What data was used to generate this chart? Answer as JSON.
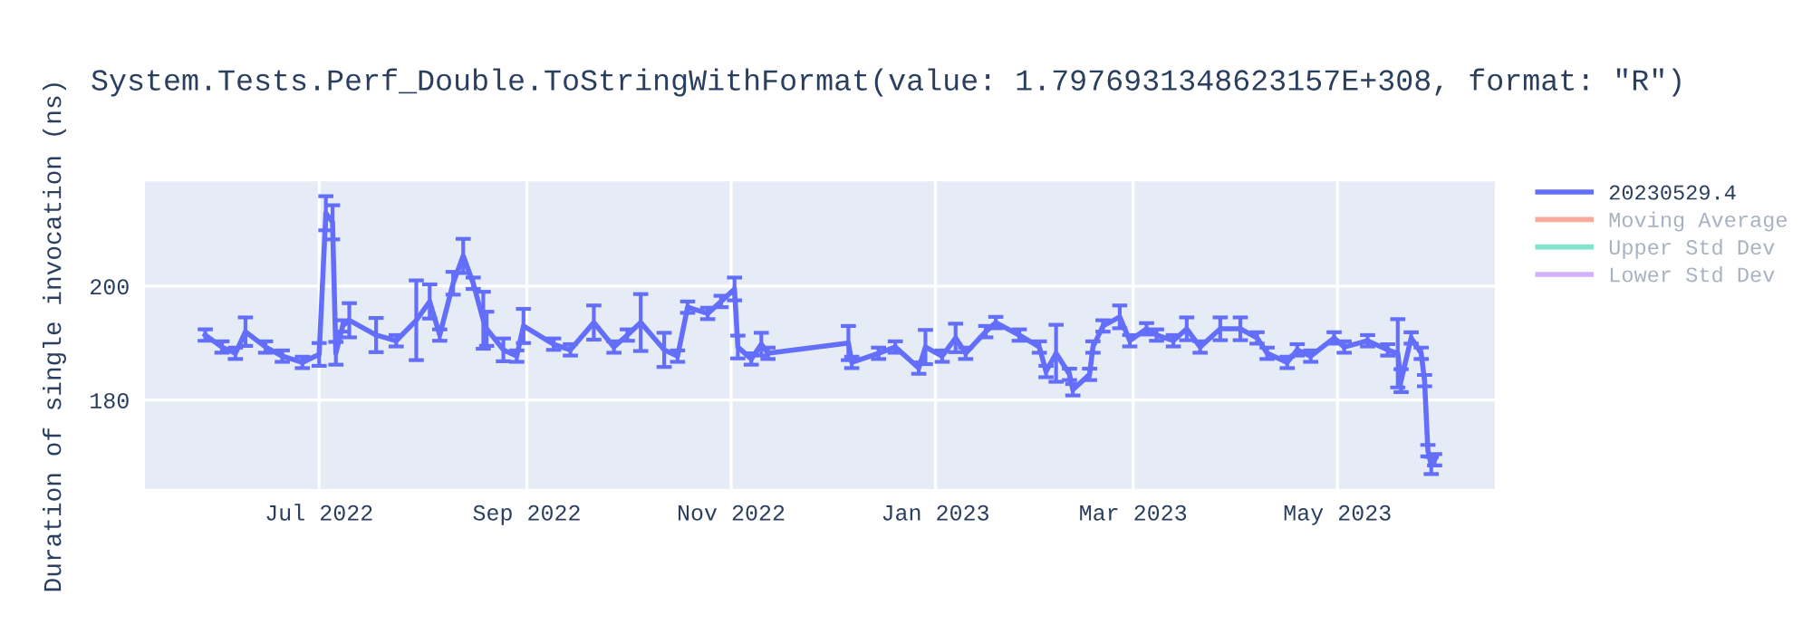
{
  "chart_data": {
    "type": "line",
    "title": "System.Tests.Perf_Double.ToStringWithFormat(value: 1.7976931348623157E+308, format: \"R\")",
    "ylabel": "Duration of single invocation (ns)",
    "x": [
      "2022-05-28",
      "2022-06-02",
      "2022-06-06",
      "2022-06-09",
      "2022-06-15",
      "2022-06-20",
      "2022-06-26",
      "2022-07-01",
      "2022-07-03",
      "2022-07-05",
      "2022-07-06",
      "2022-07-08",
      "2022-07-10",
      "2022-07-18",
      "2022-07-24",
      "2022-07-30",
      "2022-08-03",
      "2022-08-06",
      "2022-08-10",
      "2022-08-13",
      "2022-08-16",
      "2022-08-19",
      "2022-08-20",
      "2022-08-25",
      "2022-08-29",
      "2022-08-31",
      "2022-09-09",
      "2022-09-14",
      "2022-09-21",
      "2022-09-27",
      "2022-10-01",
      "2022-10-05",
      "2022-10-12",
      "2022-10-16",
      "2022-10-19",
      "2022-10-25",
      "2022-10-29",
      "2022-11-02",
      "2022-11-03",
      "2022-11-07",
      "2022-11-10",
      "2022-11-12",
      "2022-12-06",
      "2022-12-07",
      "2022-12-15",
      "2022-12-20",
      "2022-12-27",
      "2022-12-29",
      "2023-01-03",
      "2023-01-07",
      "2023-01-10",
      "2023-01-16",
      "2023-01-19",
      "2023-01-26",
      "2023-02-01",
      "2023-02-03",
      "2023-02-06",
      "2023-02-10",
      "2023-02-11",
      "2023-02-16",
      "2023-02-17",
      "2023-02-20",
      "2023-02-25",
      "2023-02-28",
      "2023-03-05",
      "2023-03-08",
      "2023-03-13",
      "2023-03-17",
      "2023-03-21",
      "2023-03-27",
      "2023-04-02",
      "2023-04-07",
      "2023-04-10",
      "2023-04-16",
      "2023-04-19",
      "2023-04-23",
      "2023-04-30",
      "2023-05-03",
      "2023-05-10",
      "2023-05-16",
      "2023-05-19",
      "2023-05-20",
      "2023-05-23",
      "2023-05-26",
      "2023-05-27",
      "2023-05-28",
      "2023-05-29",
      "2023-05-30"
    ],
    "series": [
      {
        "name": "20230529.4",
        "color": "#636efa",
        "values": [
          191.4,
          189.3,
          188.2,
          192,
          189.3,
          187.7,
          186.6,
          188,
          212.8,
          211.2,
          188.2,
          193,
          194,
          191.4,
          190.4,
          194,
          197.3,
          191.4,
          200.5,
          205.3,
          200.5,
          194,
          192.5,
          188.8,
          187.7,
          193,
          189.8,
          188.8,
          193.6,
          189.3,
          191.4,
          193.6,
          188.8,
          187.7,
          196.3,
          195.2,
          197.3,
          199.5,
          189.3,
          187.2,
          189.8,
          188.2,
          190,
          186.6,
          188.2,
          189.3,
          185.6,
          189.3,
          187.7,
          190.9,
          188.2,
          192,
          193.6,
          191.4,
          189.3,
          185,
          188.2,
          184.5,
          181.8,
          184.5,
          189.3,
          193,
          194.6,
          190.4,
          192.5,
          191.4,
          190.4,
          192.5,
          189.3,
          192.5,
          192.5,
          190.9,
          188.2,
          186.6,
          188.8,
          187.7,
          190.9,
          189.3,
          190.4,
          188.8,
          188.2,
          183.4,
          190.9,
          188.2,
          183.4,
          171.1,
          168.5,
          169.5
        ],
        "errors": [
          1,
          1,
          1,
          2.5,
          1,
          1,
          1,
          2,
          3,
          3,
          2,
          1,
          3,
          3,
          1,
          7,
          3,
          1,
          2,
          3,
          1,
          5,
          3,
          2,
          1,
          3,
          1,
          1,
          3,
          1,
          1,
          5,
          3,
          1,
          1,
          1,
          1,
          2,
          2,
          1,
          2,
          1,
          3,
          1,
          1,
          1,
          1,
          3,
          1,
          2.5,
          1,
          1,
          1,
          1,
          1,
          1,
          5,
          1,
          1,
          1,
          1,
          1,
          2,
          1,
          1,
          1,
          1,
          2,
          1,
          2,
          2,
          1,
          1,
          1,
          1,
          1,
          1,
          1,
          1,
          1,
          6,
          2,
          1,
          1,
          1,
          1,
          1.5,
          1
        ]
      },
      {
        "name": "Moving Average",
        "color": "#f7aa9d",
        "values": [
          null,
          null,
          null,
          null,
          null,
          null,
          null,
          null,
          null,
          null,
          null,
          null,
          null,
          null,
          null,
          null,
          null,
          null,
          null,
          null,
          null,
          null,
          null,
          null,
          null,
          null,
          null,
          null,
          null,
          null,
          null,
          null,
          null,
          null,
          null,
          null,
          null,
          null,
          null,
          null,
          null,
          null,
          null,
          null,
          null,
          null,
          null,
          null,
          null,
          null,
          null,
          null,
          null,
          null,
          null,
          null,
          null,
          null,
          null,
          null,
          null,
          null,
          null,
          null,
          null,
          null,
          null,
          null,
          null,
          null,
          null,
          null,
          null,
          null,
          null,
          null,
          null,
          null,
          null,
          null,
          null,
          null,
          null,
          null,
          null,
          null,
          null,
          null
        ]
      },
      {
        "name": "Upper Std Dev",
        "color": "#80e5cb",
        "values": [
          null,
          null,
          null,
          null,
          null,
          null,
          null,
          null,
          null,
          null,
          null,
          null,
          null,
          null,
          null,
          null,
          null,
          null,
          null,
          null,
          null,
          null,
          null,
          null,
          null,
          null,
          null,
          null,
          null,
          null,
          null,
          null,
          null,
          null,
          null,
          null,
          null,
          null,
          null,
          null,
          null,
          null,
          null,
          null,
          null,
          null,
          null,
          null,
          null,
          null,
          null,
          null,
          null,
          null,
          null,
          null,
          null,
          null,
          null,
          null,
          null,
          null,
          null,
          null,
          null,
          null,
          null,
          null,
          null,
          null,
          null,
          null,
          null,
          null,
          null,
          null,
          null,
          null,
          null,
          null,
          null,
          null,
          null,
          null,
          null,
          null,
          null,
          null
        ]
      },
      {
        "name": "Lower Std Dev",
        "color": "#d5b1fc",
        "values": [
          null,
          null,
          null,
          null,
          null,
          null,
          null,
          null,
          null,
          null,
          null,
          null,
          null,
          null,
          null,
          null,
          null,
          null,
          null,
          null,
          null,
          null,
          null,
          null,
          null,
          null,
          null,
          null,
          null,
          null,
          null,
          null,
          null,
          null,
          null,
          null,
          null,
          null,
          null,
          null,
          null,
          null,
          null,
          null,
          null,
          null,
          null,
          null,
          null,
          null,
          null,
          null,
          null,
          null,
          null,
          null,
          null,
          null,
          null,
          null,
          null,
          null,
          null,
          null,
          null,
          null,
          null,
          null,
          null,
          null,
          null,
          null,
          null,
          null,
          null,
          null,
          null,
          null,
          null,
          null,
          null,
          null,
          null,
          null,
          null,
          null,
          null,
          null
        ]
      }
    ],
    "xlim": [
      "2022-05-10",
      "2023-06-17"
    ],
    "xticks": [
      {
        "value": "2022-07-01",
        "label": "Jul 2022"
      },
      {
        "value": "2022-09-01",
        "label": "Sep 2022"
      },
      {
        "value": "2022-11-01",
        "label": "Nov 2022"
      },
      {
        "value": "2023-01-01",
        "label": "Jan 2023"
      },
      {
        "value": "2023-03-01",
        "label": "Mar 2023"
      },
      {
        "value": "2023-05-01",
        "label": "May 2023"
      }
    ],
    "ylim": [
      164.4,
      218.4
    ],
    "yticks": [
      180,
      200
    ],
    "grid": true,
    "legend": "right"
  }
}
